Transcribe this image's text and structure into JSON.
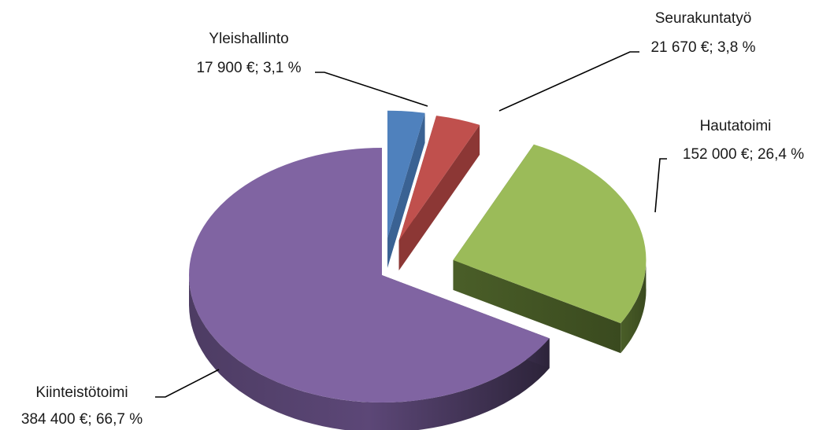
{
  "chart_data": {
    "type": "pie",
    "style": "3d-exploded",
    "title": "",
    "slices": [
      {
        "category": "Yleishallinto",
        "value": 17900,
        "value_label": "17 900 €; 3,1 %",
        "percent": 3.1,
        "color": "#4f81bd"
      },
      {
        "category": "Seurakuntatyö",
        "value": 21670,
        "value_label": "21 670 €; 3,8 %",
        "percent": 3.8,
        "color": "#c0504d"
      },
      {
        "category": "Hautatoimi",
        "value": 152000,
        "value_label": "152 000 €; 26,4 %",
        "percent": 26.4,
        "color": "#9bbb59"
      },
      {
        "category": "Kiinteistötoimi",
        "value": 384400,
        "value_label": "384 400 €; 66,7 %",
        "percent": 66.7,
        "color": "#8064a2"
      }
    ],
    "legend": "none"
  }
}
